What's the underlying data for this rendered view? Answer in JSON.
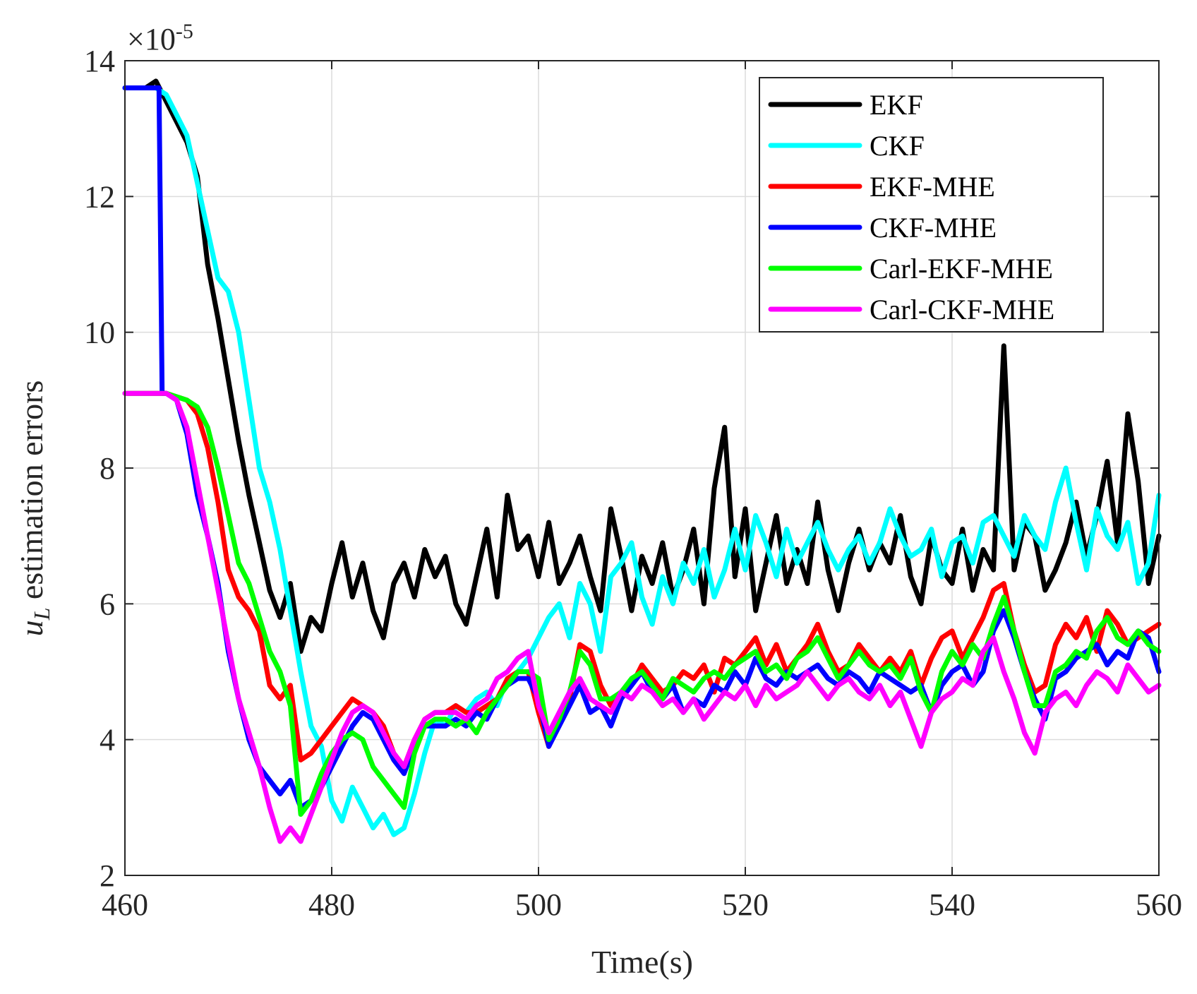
{
  "chart_data": {
    "type": "line",
    "xlabel": "Time(s)",
    "ylabel_main": "u",
    "ylabel_sub": "L",
    "ylabel_rest": " estimation errors",
    "exponent_prefix": "×10",
    "exponent_power": "-5",
    "xlim": [
      460,
      560
    ],
    "ylim": [
      2,
      14
    ],
    "xticks": [
      460,
      480,
      500,
      520,
      540,
      560
    ],
    "yticks": [
      2,
      4,
      6,
      8,
      10,
      12,
      14
    ],
    "xtick_labels": [
      "460",
      "480",
      "500",
      "520",
      "540",
      "560"
    ],
    "ytick_labels": [
      "2",
      "4",
      "6",
      "8",
      "10",
      "12",
      "14"
    ],
    "grid": true,
    "legend_position": "top-right",
    "series": [
      {
        "name": "EKF",
        "color": "#000000",
        "x": [
          460,
          462,
          463,
          464,
          465,
          466,
          467,
          468,
          469,
          470,
          471,
          472,
          473,
          474,
          475,
          476,
          477,
          478,
          479,
          480,
          481,
          482,
          483,
          484,
          485,
          486,
          487,
          488,
          489,
          490,
          491,
          492,
          493,
          494,
          495,
          496,
          497,
          498,
          499,
          500,
          501,
          502,
          503,
          504,
          505,
          506,
          507,
          508,
          509,
          510,
          511,
          512,
          513,
          514,
          515,
          516,
          517,
          518,
          519,
          520,
          521,
          522,
          523,
          524,
          525,
          526,
          527,
          528,
          529,
          530,
          531,
          532,
          533,
          534,
          535,
          536,
          537,
          538,
          539,
          540,
          541,
          542,
          543,
          544,
          545,
          546,
          547,
          548,
          549,
          550,
          551,
          552,
          553,
          554,
          555,
          556,
          557,
          558,
          559,
          560
        ],
        "y": [
          13.6,
          13.6,
          13.7,
          13.4,
          13.1,
          12.8,
          12.3,
          11.0,
          10.2,
          9.3,
          8.4,
          7.6,
          6.9,
          6.2,
          5.8,
          6.3,
          5.3,
          5.8,
          5.6,
          6.3,
          6.9,
          6.1,
          6.6,
          5.9,
          5.5,
          6.3,
          6.6,
          6.1,
          6.8,
          6.4,
          6.7,
          6.0,
          5.7,
          6.4,
          7.1,
          6.1,
          7.6,
          6.8,
          7.0,
          6.4,
          7.2,
          6.3,
          6.6,
          7.0,
          6.4,
          5.9,
          7.4,
          6.7,
          5.9,
          6.7,
          6.3,
          6.9,
          6.1,
          6.5,
          7.1,
          6.0,
          7.7,
          8.6,
          6.4,
          7.4,
          5.9,
          6.6,
          7.3,
          6.3,
          6.8,
          6.3,
          7.5,
          6.5,
          5.9,
          6.6,
          7.1,
          6.5,
          6.9,
          6.6,
          7.3,
          6.4,
          6.0,
          7.0,
          6.5,
          6.3,
          7.1,
          6.2,
          6.8,
          6.5,
          9.8,
          6.5,
          7.2,
          7.0,
          6.2,
          6.5,
          6.9,
          7.5,
          6.7,
          7.3,
          8.1,
          6.9,
          8.8,
          7.8,
          6.3,
          7.0
        ]
      },
      {
        "name": "CKF",
        "color": "#00ffff",
        "x": [
          460,
          462,
          463,
          464,
          465,
          466,
          467,
          468,
          469,
          470,
          471,
          472,
          473,
          474,
          475,
          476,
          477,
          478,
          479,
          480,
          481,
          482,
          483,
          484,
          485,
          486,
          487,
          488,
          489,
          490,
          491,
          492,
          493,
          494,
          495,
          496,
          497,
          498,
          499,
          500,
          501,
          502,
          503,
          504,
          505,
          506,
          507,
          508,
          509,
          510,
          511,
          512,
          513,
          514,
          515,
          516,
          517,
          518,
          519,
          520,
          521,
          522,
          523,
          524,
          525,
          526,
          527,
          528,
          529,
          530,
          531,
          532,
          533,
          534,
          535,
          536,
          537,
          538,
          539,
          540,
          541,
          542,
          543,
          544,
          545,
          546,
          547,
          548,
          549,
          550,
          551,
          552,
          553,
          554,
          555,
          556,
          557,
          558,
          559,
          560
        ],
        "y": [
          13.6,
          13.6,
          13.6,
          13.5,
          13.2,
          12.9,
          12.2,
          11.5,
          10.8,
          10.6,
          10.0,
          9.0,
          8.0,
          7.5,
          6.8,
          5.9,
          5.0,
          4.2,
          3.9,
          3.1,
          2.8,
          3.3,
          3.0,
          2.7,
          2.9,
          2.6,
          2.7,
          3.2,
          3.8,
          4.3,
          4.2,
          4.5,
          4.4,
          4.6,
          4.7,
          4.5,
          4.9,
          5.0,
          5.2,
          5.5,
          5.8,
          6.0,
          5.5,
          6.3,
          6.0,
          5.3,
          6.4,
          6.6,
          6.9,
          6.1,
          5.7,
          6.4,
          6.0,
          6.6,
          6.3,
          6.8,
          6.1,
          6.5,
          7.1,
          6.5,
          7.3,
          6.9,
          6.4,
          7.1,
          6.6,
          6.9,
          7.2,
          6.8,
          6.5,
          6.8,
          7.0,
          6.6,
          6.9,
          7.4,
          7.0,
          6.7,
          6.8,
          7.1,
          6.4,
          6.9,
          7.0,
          6.6,
          7.2,
          7.3,
          7.0,
          6.7,
          7.3,
          7.0,
          6.8,
          7.5,
          8.0,
          7.2,
          6.5,
          7.4,
          7.0,
          6.8,
          7.2,
          6.3,
          6.6,
          7.6
        ]
      },
      {
        "name": "EKF-MHE",
        "color": "#ff0000",
        "x": [
          460,
          462,
          464,
          466,
          467,
          468,
          469,
          470,
          471,
          472,
          473,
          474,
          475,
          476,
          477,
          478,
          479,
          480,
          481,
          482,
          483,
          484,
          485,
          486,
          487,
          488,
          489,
          490,
          491,
          492,
          493,
          494,
          495,
          496,
          497,
          498,
          499,
          500,
          501,
          502,
          503,
          504,
          505,
          506,
          507,
          508,
          509,
          510,
          511,
          512,
          513,
          514,
          515,
          516,
          517,
          518,
          519,
          520,
          521,
          522,
          523,
          524,
          525,
          526,
          527,
          528,
          529,
          530,
          531,
          532,
          533,
          534,
          535,
          536,
          537,
          538,
          539,
          540,
          541,
          542,
          543,
          544,
          545,
          546,
          547,
          548,
          549,
          550,
          551,
          552,
          553,
          554,
          555,
          556,
          557,
          558,
          559,
          560
        ],
        "y": [
          9.1,
          9.1,
          9.1,
          9.0,
          8.8,
          8.3,
          7.5,
          6.5,
          6.1,
          5.9,
          5.6,
          4.8,
          4.6,
          4.8,
          3.7,
          3.8,
          4.0,
          4.2,
          4.4,
          4.6,
          4.5,
          4.4,
          4.2,
          3.8,
          3.6,
          4.0,
          4.3,
          4.4,
          4.4,
          4.5,
          4.4,
          4.4,
          4.5,
          4.6,
          4.9,
          5.0,
          5.0,
          4.4,
          3.9,
          4.3,
          4.6,
          5.4,
          5.3,
          4.8,
          4.5,
          4.7,
          4.8,
          5.1,
          4.9,
          4.7,
          4.8,
          5.0,
          4.9,
          5.1,
          4.7,
          5.2,
          5.1,
          5.3,
          5.5,
          5.1,
          5.4,
          5.0,
          5.2,
          5.4,
          5.7,
          5.3,
          5.0,
          5.1,
          5.4,
          5.2,
          5.0,
          5.2,
          5.0,
          5.3,
          4.8,
          5.2,
          5.5,
          5.6,
          5.2,
          5.5,
          5.8,
          6.2,
          6.3,
          5.6,
          5.1,
          4.7,
          4.8,
          5.4,
          5.7,
          5.5,
          5.8,
          5.3,
          5.9,
          5.7,
          5.4,
          5.5,
          5.6,
          5.7
        ]
      },
      {
        "name": "CKF-MHE",
        "color": "#0000ff",
        "x": [
          460,
          461,
          462,
          463,
          463.3,
          463.6,
          464,
          465,
          466,
          467,
          468,
          469,
          470,
          471,
          472,
          473,
          474,
          475,
          476,
          477,
          478,
          479,
          480,
          481,
          482,
          483,
          484,
          485,
          486,
          487,
          488,
          489,
          490,
          491,
          492,
          493,
          494,
          495,
          496,
          497,
          498,
          499,
          500,
          501,
          502,
          503,
          504,
          505,
          506,
          507,
          508,
          509,
          510,
          511,
          512,
          513,
          514,
          515,
          516,
          517,
          518,
          519,
          520,
          521,
          522,
          523,
          524,
          525,
          526,
          527,
          528,
          529,
          530,
          531,
          532,
          533,
          534,
          535,
          536,
          537,
          538,
          539,
          540,
          541,
          542,
          543,
          544,
          545,
          546,
          547,
          548,
          549,
          550,
          551,
          552,
          553,
          554,
          555,
          556,
          557,
          558,
          559,
          560
        ],
        "y": [
          13.6,
          13.6,
          13.6,
          13.6,
          13.6,
          9.1,
          9.1,
          9.0,
          8.5,
          7.6,
          7.0,
          6.3,
          5.3,
          4.6,
          4.0,
          3.6,
          3.4,
          3.2,
          3.4,
          3.0,
          3.1,
          3.3,
          3.6,
          3.9,
          4.2,
          4.4,
          4.3,
          4.0,
          3.7,
          3.5,
          3.9,
          4.2,
          4.2,
          4.2,
          4.3,
          4.2,
          4.4,
          4.3,
          4.6,
          4.8,
          4.9,
          4.9,
          4.6,
          3.9,
          4.2,
          4.5,
          4.8,
          4.4,
          4.5,
          4.2,
          4.6,
          4.8,
          5.0,
          4.7,
          4.6,
          4.8,
          4.4,
          4.6,
          4.5,
          4.8,
          4.7,
          5.0,
          4.8,
          5.2,
          4.9,
          4.8,
          5.0,
          4.9,
          5.0,
          5.1,
          4.9,
          4.8,
          5.0,
          4.9,
          4.7,
          5.0,
          4.9,
          4.8,
          4.7,
          4.8,
          4.4,
          4.8,
          5.0,
          5.1,
          4.8,
          5.0,
          5.6,
          5.9,
          5.5,
          5.0,
          4.6,
          4.3,
          4.9,
          5.0,
          5.2,
          5.3,
          5.4,
          5.1,
          5.3,
          5.2,
          5.6,
          5.5,
          5.0
        ]
      },
      {
        "name": "Carl-EKF-MHE",
        "color": "#00ff00",
        "x": [
          460,
          462,
          464,
          466,
          467,
          468,
          469,
          470,
          471,
          472,
          473,
          474,
          475,
          476,
          477,
          478,
          479,
          480,
          481,
          482,
          483,
          484,
          485,
          486,
          487,
          488,
          489,
          490,
          491,
          492,
          493,
          494,
          495,
          496,
          497,
          498,
          499,
          500,
          501,
          502,
          503,
          504,
          505,
          506,
          507,
          508,
          509,
          510,
          511,
          512,
          513,
          514,
          515,
          516,
          517,
          518,
          519,
          520,
          521,
          522,
          523,
          524,
          525,
          526,
          527,
          528,
          529,
          530,
          531,
          532,
          533,
          534,
          535,
          536,
          537,
          538,
          539,
          540,
          541,
          542,
          543,
          544,
          545,
          546,
          547,
          548,
          549,
          550,
          551,
          552,
          553,
          554,
          555,
          556,
          557,
          558,
          559,
          560
        ],
        "y": [
          9.1,
          9.1,
          9.1,
          9.0,
          8.9,
          8.6,
          8.0,
          7.3,
          6.6,
          6.3,
          5.8,
          5.3,
          5.0,
          4.5,
          2.9,
          3.1,
          3.5,
          3.8,
          4.0,
          4.1,
          4.0,
          3.6,
          3.4,
          3.2,
          3.0,
          3.8,
          4.2,
          4.3,
          4.3,
          4.2,
          4.3,
          4.1,
          4.4,
          4.6,
          4.8,
          5.0,
          5.0,
          4.9,
          4.0,
          4.3,
          4.7,
          5.3,
          5.1,
          4.6,
          4.6,
          4.7,
          4.9,
          5.0,
          4.8,
          4.6,
          4.9,
          4.8,
          4.7,
          4.9,
          5.0,
          4.9,
          5.1,
          5.2,
          5.3,
          5.0,
          5.1,
          4.9,
          5.2,
          5.3,
          5.5,
          5.2,
          4.9,
          5.1,
          5.3,
          5.1,
          5.0,
          5.1,
          4.9,
          5.2,
          4.7,
          4.4,
          5.0,
          5.3,
          5.1,
          5.4,
          5.2,
          5.7,
          6.1,
          5.6,
          5.0,
          4.5,
          4.5,
          5.0,
          5.1,
          5.3,
          5.2,
          5.6,
          5.8,
          5.5,
          5.4,
          5.6,
          5.4,
          5.3
        ]
      },
      {
        "name": "Carl-CKF-MHE",
        "color": "#ff00ff",
        "x": [
          460,
          462,
          464,
          465,
          466,
          467,
          468,
          469,
          470,
          471,
          472,
          473,
          474,
          475,
          476,
          477,
          478,
          479,
          480,
          481,
          482,
          483,
          484,
          485,
          486,
          487,
          488,
          489,
          490,
          491,
          492,
          493,
          494,
          495,
          496,
          497,
          498,
          499,
          500,
          501,
          502,
          503,
          504,
          505,
          506,
          507,
          508,
          509,
          510,
          511,
          512,
          513,
          514,
          515,
          516,
          517,
          518,
          519,
          520,
          521,
          522,
          523,
          524,
          525,
          526,
          527,
          528,
          529,
          530,
          531,
          532,
          533,
          534,
          535,
          536,
          537,
          538,
          539,
          540,
          541,
          542,
          543,
          544,
          545,
          546,
          547,
          548,
          549,
          550,
          551,
          552,
          553,
          554,
          555,
          556,
          557,
          558,
          559,
          560
        ],
        "y": [
          9.1,
          9.1,
          9.1,
          9.0,
          8.6,
          7.8,
          7.0,
          6.2,
          5.4,
          4.6,
          4.1,
          3.6,
          3.0,
          2.5,
          2.7,
          2.5,
          2.9,
          3.3,
          3.7,
          4.1,
          4.4,
          4.5,
          4.4,
          4.1,
          3.8,
          3.6,
          4.0,
          4.3,
          4.4,
          4.4,
          4.4,
          4.3,
          4.5,
          4.6,
          4.9,
          5.0,
          5.2,
          5.3,
          4.5,
          4.1,
          4.4,
          4.7,
          4.9,
          4.6,
          4.5,
          4.4,
          4.7,
          4.6,
          4.8,
          4.7,
          4.5,
          4.6,
          4.4,
          4.6,
          4.3,
          4.5,
          4.7,
          4.6,
          4.8,
          4.5,
          4.8,
          4.6,
          4.7,
          4.8,
          5.0,
          4.8,
          4.6,
          4.8,
          4.9,
          4.7,
          4.6,
          4.8,
          4.5,
          4.7,
          4.3,
          3.9,
          4.4,
          4.6,
          4.7,
          4.9,
          4.8,
          5.3,
          5.5,
          5.0,
          4.6,
          4.1,
          3.8,
          4.4,
          4.6,
          4.7,
          4.5,
          4.8,
          5.0,
          4.9,
          4.7,
          5.1,
          4.9,
          4.7,
          4.8
        ]
      }
    ]
  }
}
